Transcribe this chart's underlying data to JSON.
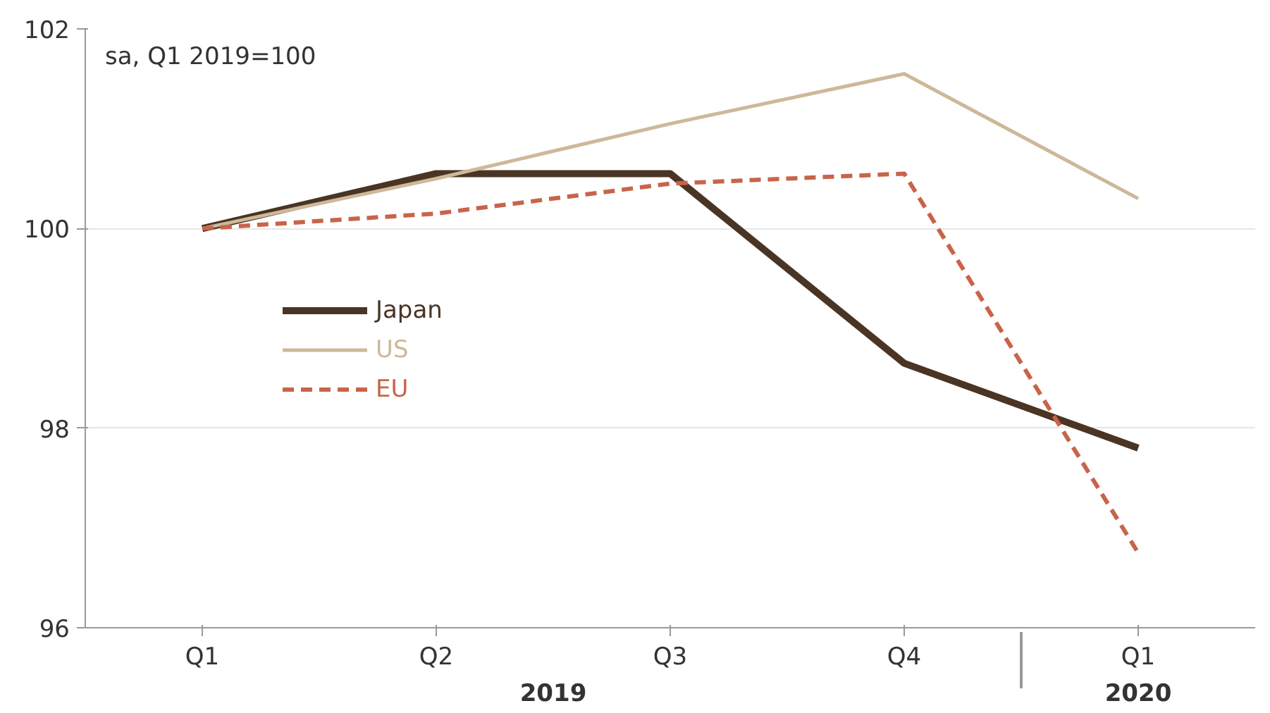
{
  "chart_data": {
    "type": "line",
    "categories": [
      "Q1",
      "Q2",
      "Q3",
      "Q4",
      "Q1"
    ],
    "series": [
      {
        "name": "Japan",
        "color": "#4a3424",
        "values": [
          100,
          100.55,
          100.55,
          98.65,
          97.8
        ],
        "line_style": "solid"
      },
      {
        "name": "US",
        "color": "#cdb89a",
        "values": [
          100,
          100.5,
          101.05,
          101.55,
          100.3
        ],
        "line_style": "solid"
      },
      {
        "name": "EU",
        "color": "#c8644a",
        "values": [
          100,
          100.15,
          100.45,
          100.55,
          96.75
        ],
        "line_style": "dashed"
      }
    ],
    "ylim": [
      96,
      102
    ],
    "yticks": [
      96,
      98,
      100,
      102
    ],
    "grid": "y",
    "legend": "left",
    "marker": "none",
    "annotations": [
      "sa, Q1 2019=100",
      "2019",
      "2020"
    ]
  }
}
